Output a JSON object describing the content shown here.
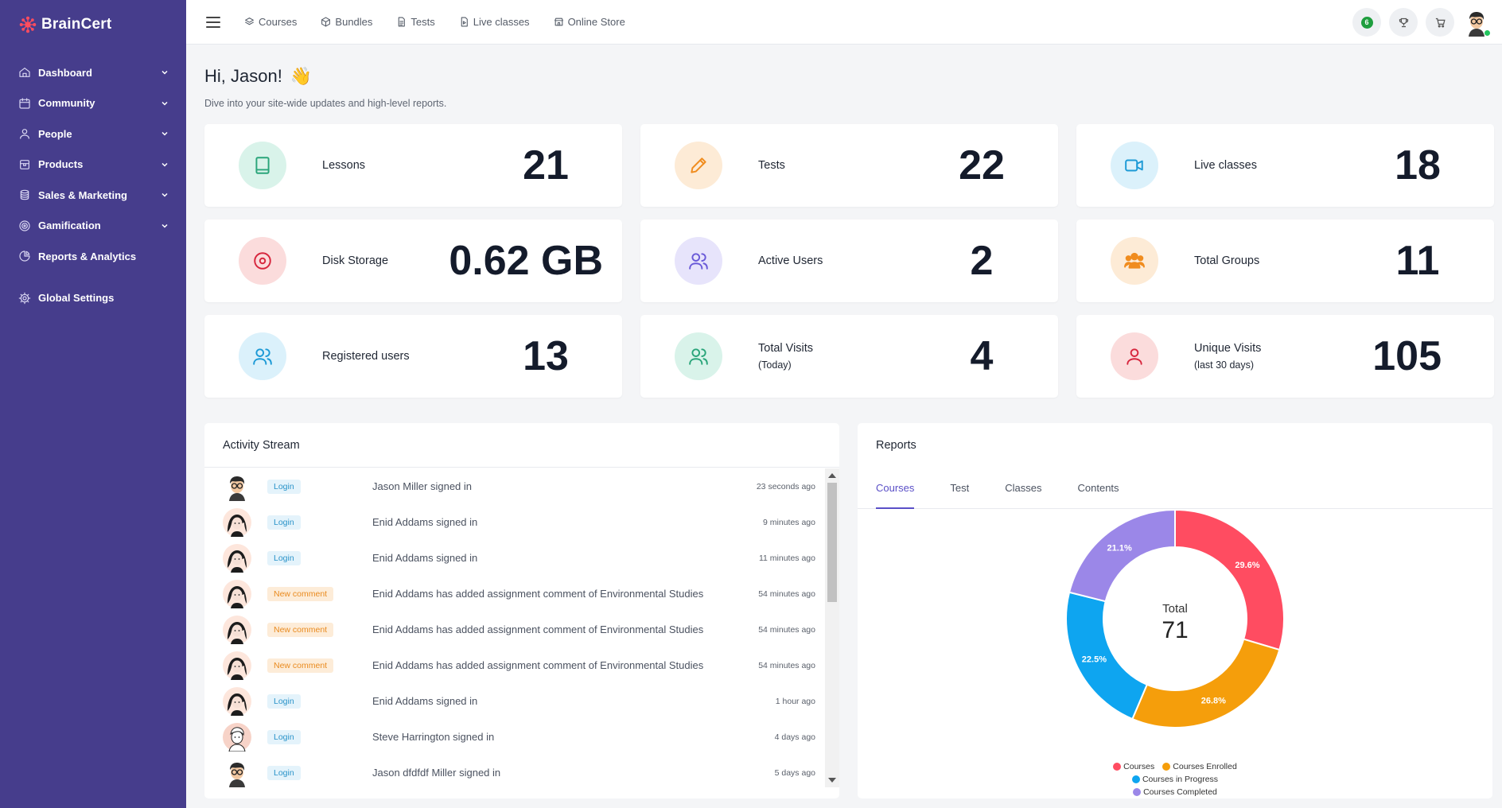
{
  "brand": {
    "name": "BrainCert"
  },
  "sidebar": {
    "items": [
      {
        "label": "Dashboard",
        "icon": "home-icon",
        "chevron": true
      },
      {
        "label": "Community",
        "icon": "calendar-icon",
        "chevron": true
      },
      {
        "label": "People",
        "icon": "user-icon",
        "chevron": true
      },
      {
        "label": "Products",
        "icon": "box-icon",
        "chevron": true
      },
      {
        "label": "Sales & Marketing",
        "icon": "coins-icon",
        "chevron": true
      },
      {
        "label": "Gamification",
        "icon": "target-icon",
        "chevron": true
      },
      {
        "label": "Reports & Analytics",
        "icon": "pie-chart-icon",
        "chevron": false
      },
      {
        "label": "Global Settings",
        "icon": "gear-icon",
        "chevron": false
      }
    ]
  },
  "topnav": {
    "items": [
      {
        "label": "Courses",
        "icon": "layers-icon"
      },
      {
        "label": "Bundles",
        "icon": "cube-icon"
      },
      {
        "label": "Tests",
        "icon": "document-icon"
      },
      {
        "label": "Live classes",
        "icon": "file-video-icon"
      },
      {
        "label": "Online Store",
        "icon": "store-icon"
      }
    ],
    "notification_count": "6"
  },
  "header": {
    "greeting": "Hi, Jason!",
    "wave": "👋",
    "subtitle": "Dive into your site-wide updates and high-level reports."
  },
  "cards": [
    {
      "label": "Lessons",
      "sub": "",
      "value": "21",
      "icon": "book-icon",
      "bg": "#d9f3ea",
      "fg": "#2aa57a"
    },
    {
      "label": "Tests",
      "sub": "",
      "value": "22",
      "icon": "pencil-icon",
      "bg": "#fdebd6",
      "fg": "#f08c1e"
    },
    {
      "label": "Live classes",
      "sub": "",
      "value": "18",
      "icon": "video-camera-icon",
      "bg": "#dbf1fb",
      "fg": "#1d9ad6"
    },
    {
      "label": "Disk Storage",
      "sub": "",
      "value": "0.62 GB",
      "icon": "disk-icon",
      "bg": "#fbdcdc",
      "fg": "#d7263d"
    },
    {
      "label": "Active Users",
      "sub": "",
      "value": "2",
      "icon": "users-icon",
      "bg": "#e7e4fb",
      "fg": "#6a5ad8"
    },
    {
      "label": "Total Groups",
      "sub": "",
      "value": "11",
      "icon": "group-icon",
      "bg": "#fdebd6",
      "fg": "#f08c1e"
    },
    {
      "label": "Registered users",
      "sub": "",
      "value": "13",
      "icon": "users-icon",
      "bg": "#dbf1fb",
      "fg": "#1d9ad6"
    },
    {
      "label": "Total Visits",
      "sub": "(Today)",
      "value": "4",
      "icon": "users-icon",
      "bg": "#d9f3ea",
      "fg": "#2aa57a"
    },
    {
      "label": "Unique Visits",
      "sub": "(last 30 days)",
      "value": "105",
      "icon": "user-icon",
      "bg": "#fbdcdc",
      "fg": "#d7263d"
    }
  ],
  "activity": {
    "title": "Activity Stream",
    "rows": [
      {
        "avatar": "man",
        "tag": "Login",
        "type": "login",
        "text": "Jason Miller signed in",
        "time": "23 seconds ago"
      },
      {
        "avatar": "woman",
        "tag": "Login",
        "type": "login",
        "text": "Enid Addams signed in",
        "time": "9 minutes ago"
      },
      {
        "avatar": "woman",
        "tag": "Login",
        "type": "login",
        "text": "Enid Addams signed in",
        "time": "11 minutes ago"
      },
      {
        "avatar": "woman",
        "tag": "New comment",
        "type": "comment",
        "text": "Enid Addams has added assignment comment of  Environmental Studies",
        "time": "54 minutes ago"
      },
      {
        "avatar": "woman",
        "tag": "New comment",
        "type": "comment",
        "text": "Enid Addams has added assignment comment of  Environmental Studies",
        "time": "54 minutes ago"
      },
      {
        "avatar": "woman",
        "tag": "New comment",
        "type": "comment",
        "text": "Enid Addams has added assignment comment of  Environmental Studies",
        "time": "54 minutes ago"
      },
      {
        "avatar": "woman",
        "tag": "Login",
        "type": "login",
        "text": "Enid Addams signed in",
        "time": "1 hour ago"
      },
      {
        "avatar": "steve",
        "tag": "Login",
        "type": "login",
        "text": "Steve Harrington signed in",
        "time": "4 days ago"
      },
      {
        "avatar": "man",
        "tag": "Login",
        "type": "login",
        "text": "Jason dfdfdf Miller signed in",
        "time": "5 days ago"
      }
    ]
  },
  "reports": {
    "title": "Reports",
    "tabs": [
      "Courses",
      "Test",
      "Classes",
      "Contents"
    ],
    "active_tab": 0
  },
  "chart_data": {
    "type": "pie",
    "subtype": "donut",
    "center_label": "Total",
    "center_value": "71",
    "slices": [
      {
        "name": "Courses",
        "value": 29.6,
        "label": "29.6%",
        "color": "#ff4c61"
      },
      {
        "name": "Courses Enrolled",
        "value": 26.8,
        "label": "26.8%",
        "color": "#f59e0b"
      },
      {
        "name": "Courses in Progress",
        "value": 22.5,
        "label": "22.5%",
        "color": "#0ea5f0"
      },
      {
        "name": "Courses Completed",
        "value": 21.1,
        "label": "21.1%",
        "color": "#9b87e8"
      }
    ],
    "legend_position": "bottom"
  }
}
